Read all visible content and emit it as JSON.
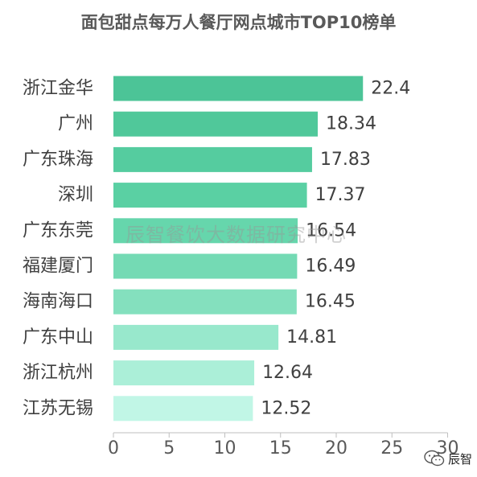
{
  "chart_data": {
    "type": "bar",
    "orientation": "horizontal",
    "title": "面包甜点每万人餐厅网点城市TOP10榜单",
    "categories": [
      "浙江金华",
      "广州",
      "广东珠海",
      "深圳",
      "广东东莞",
      "福建厦门",
      "海南海口",
      "广东中山",
      "浙江杭州",
      "江苏无锡"
    ],
    "values": [
      22.4,
      18.34,
      17.83,
      17.37,
      16.54,
      16.49,
      16.45,
      14.81,
      12.64,
      12.52
    ],
    "value_labels": [
      "22.4",
      "18.34",
      "17.83",
      "17.37",
      "16.54",
      "16.49",
      "16.45",
      "14.81",
      "12.64",
      "12.52"
    ],
    "xlim": [
      0,
      30
    ],
    "xticks": [
      0,
      5,
      10,
      15,
      20,
      25,
      30
    ],
    "bar_colors": [
      "#4cc497",
      "#50c89a",
      "#55cc9f",
      "#5ad0a3",
      "#66d6ac",
      "#74dab4",
      "#84e0be",
      "#98e8cc",
      "#abefd8",
      "#c1f6e6"
    ],
    "grid": false,
    "legend": "none"
  },
  "watermark": "辰智餐饮大数据研究中心",
  "badge": {
    "icon": "wechat-icon",
    "text": "辰智"
  }
}
